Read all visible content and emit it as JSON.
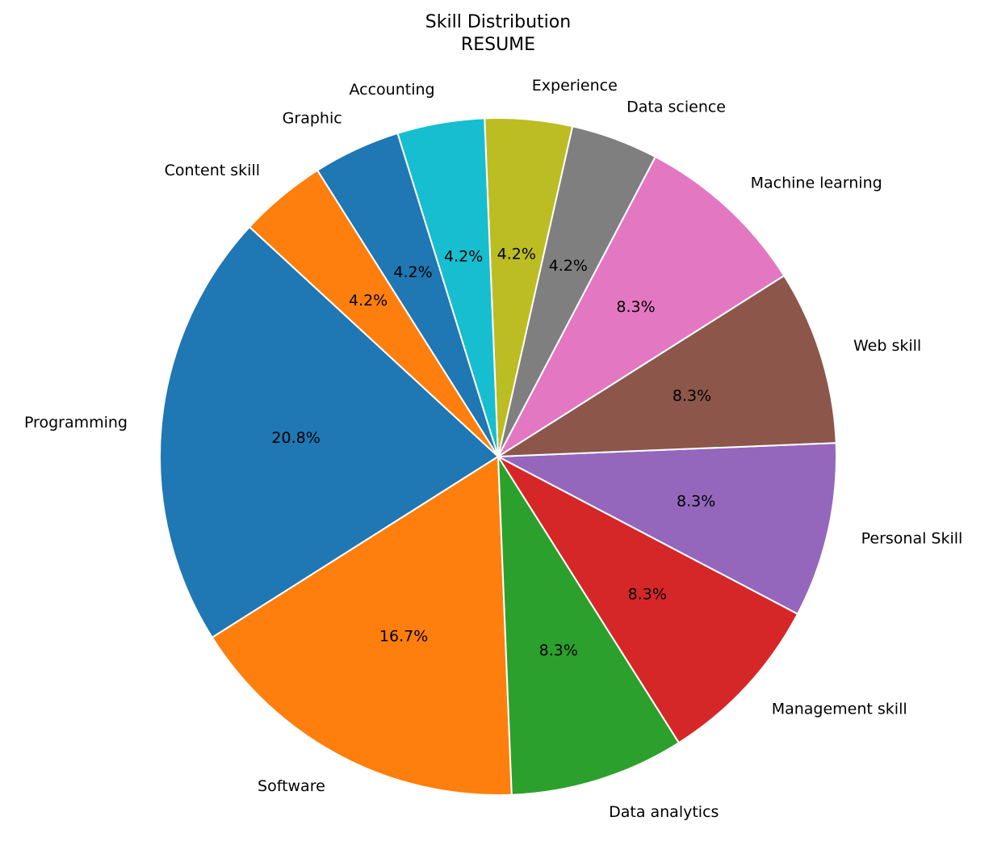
{
  "chart_data": {
    "type": "pie",
    "title": "Skill Distribution",
    "subtitle": "RESUME",
    "start_angle_deg": 137.3,
    "direction": "counterclockwise",
    "slices": [
      {
        "label": "Programming",
        "value": 5,
        "percent_label": "20.8%",
        "color": "#1f77b4"
      },
      {
        "label": "Software",
        "value": 4,
        "percent_label": "16.7%",
        "color": "#ff7f0e"
      },
      {
        "label": "Data analytics",
        "value": 2,
        "percent_label": "8.3%",
        "color": "#2ca02c"
      },
      {
        "label": "Management skill",
        "value": 2,
        "percent_label": "8.3%",
        "color": "#d62728"
      },
      {
        "label": "Personal Skill",
        "value": 2,
        "percent_label": "8.3%",
        "color": "#9467bd"
      },
      {
        "label": "Web skill",
        "value": 2,
        "percent_label": "8.3%",
        "color": "#8c564b"
      },
      {
        "label": "Machine learning",
        "value": 2,
        "percent_label": "8.3%",
        "color": "#e377c2"
      },
      {
        "label": "Data science",
        "value": 1,
        "percent_label": "4.2%",
        "color": "#7f7f7f"
      },
      {
        "label": "Experience",
        "value": 1,
        "percent_label": "4.2%",
        "color": "#bcbd22"
      },
      {
        "label": "Accounting",
        "value": 1,
        "percent_label": "4.2%",
        "color": "#17becf"
      },
      {
        "label": "Graphic",
        "value": 1,
        "percent_label": "4.2%",
        "color": "#1f77b4"
      },
      {
        "label": "Content skill",
        "value": 1,
        "percent_label": "4.2%",
        "color": "#ff7f0e"
      }
    ]
  }
}
